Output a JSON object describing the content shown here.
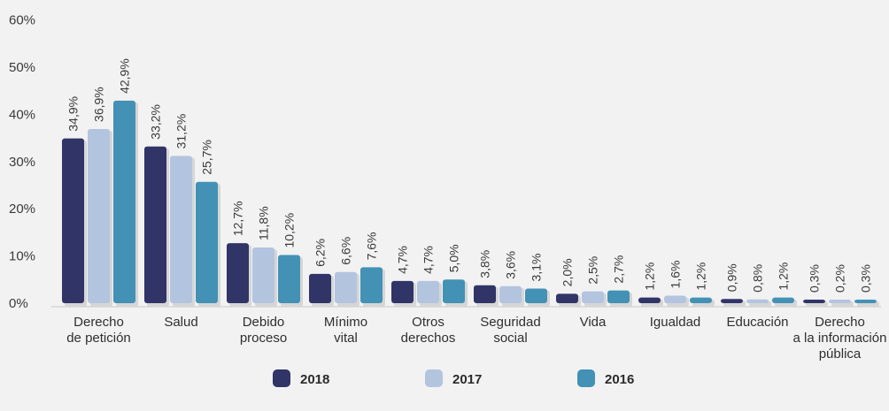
{
  "chart_data": {
    "type": "bar",
    "title": "",
    "xlabel": "",
    "ylabel": "",
    "ylim": [
      0,
      60
    ],
    "yticks": [
      "0%",
      "10%",
      "20%",
      "30%",
      "40%",
      "50%",
      "60%"
    ],
    "grid": false,
    "legend_position": "bottom",
    "categories": [
      [
        "Derecho",
        "de petición"
      ],
      [
        "Salud"
      ],
      [
        "Debido",
        "proceso"
      ],
      [
        "Mínimo",
        "vital"
      ],
      [
        "Otros",
        "derechos"
      ],
      [
        "Seguridad",
        "social"
      ],
      [
        "Vida"
      ],
      [
        "Igualdad"
      ],
      [
        "Educación"
      ],
      [
        "Derecho",
        "a la información",
        "pública"
      ]
    ],
    "series": [
      {
        "name": "2018",
        "color": "#313467",
        "values": [
          34.9,
          33.2,
          12.7,
          6.2,
          4.7,
          3.8,
          2.0,
          1.2,
          0.9,
          0.3
        ],
        "labels": [
          "34,9%",
          "33,2%",
          "12,7%",
          "6,2%",
          "4,7%",
          "3,8%",
          "2,0%",
          "1,2%",
          "0,9%",
          "0,3%"
        ]
      },
      {
        "name": "2017",
        "color": "#b3c4df",
        "values": [
          36.9,
          31.2,
          11.8,
          6.6,
          4.7,
          3.6,
          2.5,
          1.6,
          0.8,
          0.2
        ],
        "labels": [
          "36,9%",
          "31,2%",
          "11,8%",
          "6,6%",
          "4,7%",
          "3,6%",
          "2,5%",
          "1,6%",
          "0,8%",
          "0,2%"
        ]
      },
      {
        "name": "2016",
        "color": "#4391b5",
        "values": [
          42.9,
          25.7,
          10.2,
          7.6,
          5.0,
          3.1,
          2.7,
          1.2,
          1.2,
          0.3
        ],
        "labels": [
          "42,9%",
          "25,7%",
          "10,2%",
          "7,6%",
          "5,0%",
          "3,1%",
          "2,7%",
          "1,2%",
          "1,2%",
          "0,3%"
        ]
      }
    ]
  }
}
